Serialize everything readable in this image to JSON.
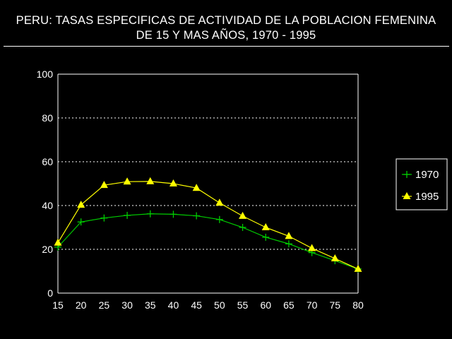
{
  "title_line1": "PERU: TASAS ESPECIFICAS DE ACTIVIDAD DE LA POBLACION FEMENINA",
  "title_line2": "DE 15 Y MAS AÑOS, 1970 - 1995",
  "colors": {
    "background": "#000000",
    "axis": "#ffffff",
    "series_1970": "#00cc00",
    "series_1995": "#ffff00"
  },
  "chart_data": {
    "type": "line",
    "title": "PERU: TASAS ESPECIFICAS DE ACTIVIDAD DE LA POBLACION FEMENINA DE 15 Y MAS AÑOS, 1970 - 1995",
    "x": [
      15,
      20,
      25,
      30,
      35,
      40,
      45,
      50,
      55,
      60,
      65,
      70,
      75,
      80
    ],
    "series": [
      {
        "name": "1970",
        "marker": "plus",
        "color": "#00cc00",
        "values": [
          21,
          32.5,
          34.3,
          35.5,
          36.2,
          36,
          35.3,
          33.6,
          30,
          25.5,
          22.5,
          18.5,
          14.8,
          11
        ]
      },
      {
        "name": "1995",
        "marker": "triangle",
        "color": "#ffff00",
        "values": [
          23,
          40.3,
          49.3,
          50.9,
          51,
          50,
          48,
          41.2,
          35.2,
          30,
          26,
          20.5,
          15.8,
          11
        ]
      }
    ],
    "xlim": [
      15,
      80
    ],
    "ylim": [
      0,
      100
    ],
    "yticks": [
      0,
      20,
      40,
      60,
      80,
      100
    ],
    "xticks": [
      15,
      20,
      25,
      30,
      35,
      40,
      45,
      50,
      55,
      60,
      65,
      70,
      75,
      80
    ],
    "grid": "horizontal-dotted",
    "legend": "right"
  }
}
